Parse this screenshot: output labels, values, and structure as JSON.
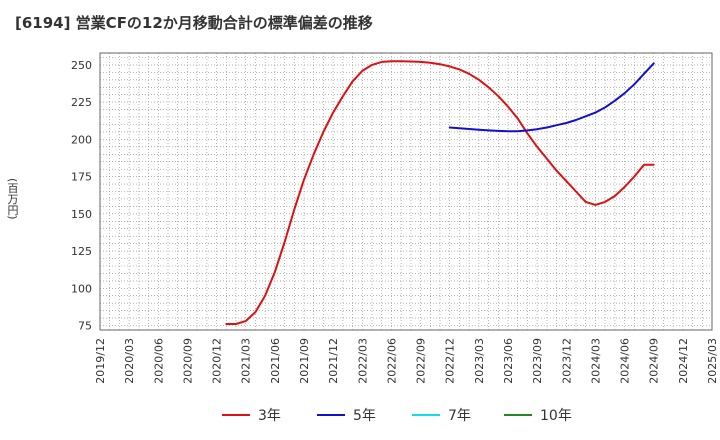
{
  "title": "[6194]  営業CFの12か月移動合計の標準偏差の推移",
  "y_unit": "(百万円)",
  "legend": [
    {
      "label": "3年",
      "color": "#dd1111"
    },
    {
      "label": "5年",
      "color": "#1111cc"
    },
    {
      "label": "7年",
      "color": "#11ddee"
    },
    {
      "label": "10年",
      "color": "#228822"
    }
  ],
  "chart_data": {
    "type": "line",
    "title": "[6194]  営業CFの12か月移動合計の標準偏差の推移",
    "ylabel": "(百万円)",
    "xlabel": "",
    "ylim": [
      72,
      258
    ],
    "yticks": [
      75,
      100,
      125,
      150,
      175,
      200,
      225,
      250
    ],
    "x_range": [
      "2019-12",
      "2025-03"
    ],
    "xticks": [
      "2019/12",
      "2020/03",
      "2020/06",
      "2020/09",
      "2020/12",
      "2021/03",
      "2021/06",
      "2021/09",
      "2021/12",
      "2022/03",
      "2022/06",
      "2022/09",
      "2022/12",
      "2023/03",
      "2023/06",
      "2023/09",
      "2023/12",
      "2024/03",
      "2024/06",
      "2024/09",
      "2024/12",
      "2025/03"
    ],
    "grid": true,
    "legend_position": "bottom",
    "series": [
      {
        "name": "3年",
        "color": "#dd1111",
        "x": [
          "2021-01",
          "2021-02",
          "2021-03",
          "2021-04",
          "2021-05",
          "2021-06",
          "2021-07",
          "2021-08",
          "2021-09",
          "2021-10",
          "2021-11",
          "2021-12",
          "2022-01",
          "2022-02",
          "2022-03",
          "2022-04",
          "2022-05",
          "2022-06",
          "2022-07",
          "2022-08",
          "2022-09",
          "2022-10",
          "2022-11",
          "2022-12",
          "2023-01",
          "2023-02",
          "2023-03",
          "2023-04",
          "2023-05",
          "2023-06",
          "2023-07",
          "2023-08",
          "2023-09",
          "2023-10",
          "2023-11",
          "2023-12",
          "2024-01",
          "2024-02",
          "2024-03",
          "2024-04",
          "2024-05",
          "2024-06",
          "2024-07",
          "2024-08",
          "2024-09"
        ],
        "values": [
          76,
          76,
          78,
          84,
          95,
          111,
          131,
          153,
          173,
          190,
          205,
          218,
          229,
          239,
          246,
          250,
          252,
          252.5,
          252.5,
          252.3,
          252,
          251.5,
          250.5,
          249,
          247,
          244,
          240,
          235,
          229,
          222,
          214,
          204,
          195,
          187,
          179,
          172,
          165,
          158,
          156,
          158,
          162,
          168,
          175,
          183,
          183
        ]
      },
      {
        "name": "5年",
        "color": "#1111cc",
        "x": [
          "2022-12",
          "2023-01",
          "2023-02",
          "2023-03",
          "2023-04",
          "2023-05",
          "2023-06",
          "2023-07",
          "2023-08",
          "2023-09",
          "2023-10",
          "2023-11",
          "2023-12",
          "2024-01",
          "2024-02",
          "2024-03",
          "2024-04",
          "2024-05",
          "2024-06",
          "2024-07",
          "2024-08",
          "2024-09"
        ],
        "values": [
          208,
          207.5,
          207,
          206.5,
          206,
          205.7,
          205.5,
          205.5,
          206,
          206.8,
          208,
          209.5,
          211,
          213,
          215.5,
          218,
          221.5,
          226,
          231,
          237,
          244,
          251
        ]
      },
      {
        "name": "7年",
        "color": "#11ddee",
        "x": [],
        "values": []
      },
      {
        "name": "10年",
        "color": "#228822",
        "x": [],
        "values": []
      }
    ]
  }
}
